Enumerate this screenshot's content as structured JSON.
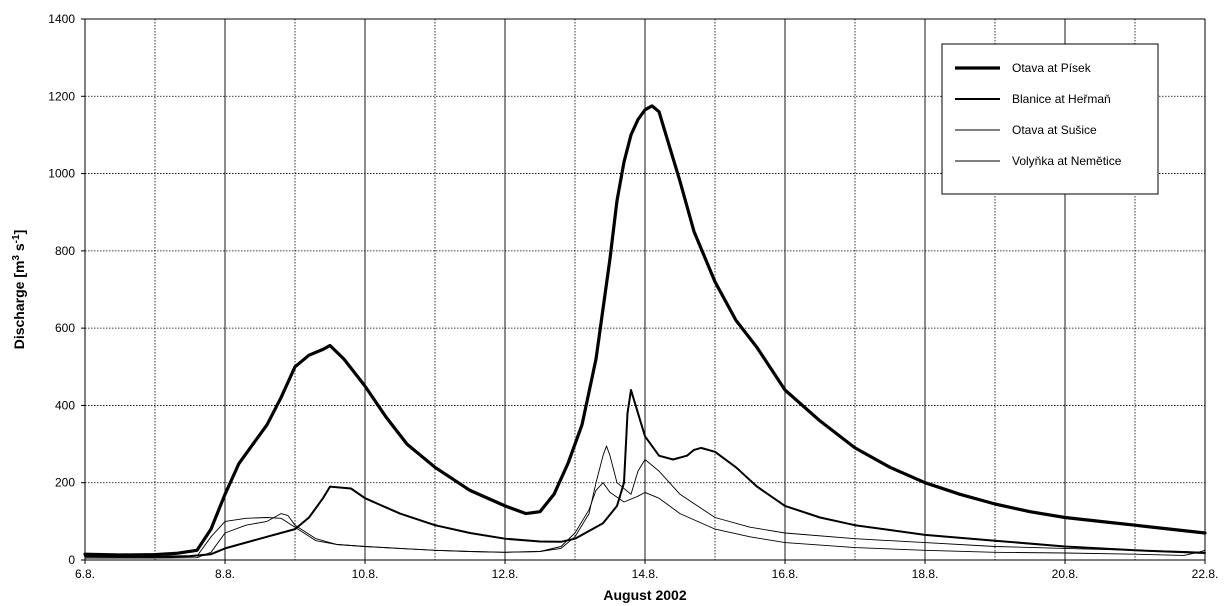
{
  "chart_data": {
    "type": "line",
    "title": "",
    "xlabel": "August 2002",
    "ylabel": "Discharge [m3 s-1]",
    "ylabel_parts": {
      "main": "Discharge [m",
      "sup1": "3",
      "mid": " s",
      "sup2": "-1",
      "end": "]"
    },
    "xlim": [
      6,
      22
    ],
    "ylim": [
      0,
      1400
    ],
    "x_ticks": [
      6,
      8,
      10,
      12,
      14,
      16,
      18,
      20,
      22
    ],
    "x_tick_labels": [
      "6.8.",
      "8.8.",
      "10.8.",
      "12.8.",
      "14.8.",
      "16.8.",
      "18.8.",
      "20.8.",
      "22.8."
    ],
    "y_ticks": [
      0,
      200,
      400,
      600,
      800,
      1000,
      1200,
      1400
    ],
    "y_tick_labels": [
      "0",
      "200",
      "400",
      "600",
      "800",
      "1000",
      "1200",
      "1400"
    ],
    "grid": true,
    "legend_position": "top-right",
    "series": [
      {
        "name": "Otava at Písek",
        "x": [
          6,
          6.5,
          7,
          7.3,
          7.6,
          7.8,
          8.0,
          8.2,
          8.4,
          8.6,
          8.8,
          9.0,
          9.2,
          9.4,
          9.5,
          9.7,
          10.0,
          10.3,
          10.6,
          11.0,
          11.5,
          12.0,
          12.3,
          12.5,
          12.7,
          12.9,
          13.1,
          13.3,
          13.5,
          13.6,
          13.7,
          13.8,
          13.9,
          14.0,
          14.1,
          14.2,
          14.3,
          14.5,
          14.7,
          15.0,
          15.3,
          15.6,
          16.0,
          16.5,
          17.0,
          17.5,
          18.0,
          18.5,
          19.0,
          19.5,
          20.0,
          20.5,
          21.0,
          21.5,
          22.0
        ],
        "y": [
          15,
          13,
          14,
          17,
          25,
          80,
          170,
          250,
          300,
          350,
          420,
          500,
          530,
          545,
          555,
          520,
          450,
          370,
          300,
          240,
          180,
          140,
          120,
          125,
          170,
          250,
          350,
          520,
          780,
          930,
          1030,
          1100,
          1140,
          1165,
          1175,
          1160,
          1100,
          980,
          850,
          720,
          620,
          550,
          440,
          360,
          290,
          240,
          200,
          170,
          145,
          125,
          110,
          100,
          90,
          80,
          70
        ]
      },
      {
        "name": "Blanice at Heřmaň",
        "x": [
          6,
          6.5,
          7,
          7.5,
          7.8,
          8.0,
          8.5,
          9.0,
          9.2,
          9.4,
          9.5,
          9.8,
          10.0,
          10.5,
          11.0,
          11.5,
          12.0,
          12.5,
          12.8,
          13.0,
          13.2,
          13.4,
          13.6,
          13.7,
          13.75,
          13.8,
          13.9,
          14.0,
          14.2,
          14.4,
          14.6,
          14.7,
          14.8,
          15.0,
          15.3,
          15.6,
          16.0,
          16.5,
          17.0,
          18.0,
          19.0,
          20.0,
          21.0,
          22.0
        ],
        "y": [
          10,
          8,
          8,
          10,
          15,
          30,
          55,
          80,
          110,
          160,
          190,
          185,
          160,
          120,
          90,
          70,
          55,
          48,
          47,
          55,
          75,
          95,
          140,
          200,
          380,
          440,
          380,
          320,
          270,
          260,
          270,
          285,
          290,
          280,
          240,
          190,
          140,
          110,
          90,
          65,
          50,
          35,
          25,
          18
        ]
      },
      {
        "name": "Otava at Sušice",
        "x": [
          6,
          7,
          7.6,
          7.8,
          8.0,
          8.3,
          8.6,
          8.8,
          8.9,
          9.0,
          9.3,
          9.6,
          10.0,
          10.5,
          11.0,
          11.5,
          12.0,
          12.5,
          12.8,
          13.0,
          13.2,
          13.3,
          13.4,
          13.45,
          13.5,
          13.6,
          13.8,
          13.9,
          14.0,
          14.2,
          14.5,
          15.0,
          15.5,
          16.0,
          17.0,
          18.0,
          19.0,
          20.0,
          21.0,
          21.7,
          22.0
        ],
        "y": [
          5,
          5,
          6,
          20,
          70,
          90,
          100,
          120,
          115,
          90,
          55,
          40,
          35,
          30,
          25,
          22,
          20,
          22,
          30,
          60,
          120,
          200,
          270,
          295,
          270,
          200,
          170,
          230,
          260,
          230,
          170,
          110,
          85,
          70,
          55,
          45,
          35,
          30,
          25,
          22,
          20
        ]
      },
      {
        "name": "Volyňka at Nemětice",
        "x": [
          6,
          7,
          7.6,
          7.8,
          8.0,
          8.3,
          8.6,
          8.8,
          9.0,
          9.3,
          9.6,
          10.0,
          10.5,
          11.0,
          11.5,
          12.0,
          12.5,
          12.8,
          13.0,
          13.2,
          13.3,
          13.4,
          13.5,
          13.7,
          13.9,
          14.0,
          14.2,
          14.5,
          15.0,
          15.5,
          16.0,
          17.0,
          18.0,
          19.0,
          20.0,
          21.0,
          21.7,
          21.9,
          22.0
        ],
        "y": [
          8,
          8,
          10,
          60,
          100,
          108,
          110,
          108,
          85,
          50,
          40,
          35,
          30,
          25,
          22,
          20,
          22,
          35,
          70,
          130,
          180,
          200,
          175,
          150,
          165,
          175,
          160,
          120,
          80,
          60,
          45,
          32,
          25,
          20,
          18,
          15,
          12,
          20,
          25
        ]
      }
    ],
    "series_stroke_widths": [
      3.2,
      2.0,
      0.9,
      0.9
    ],
    "extra_ylabels_note": ""
  }
}
